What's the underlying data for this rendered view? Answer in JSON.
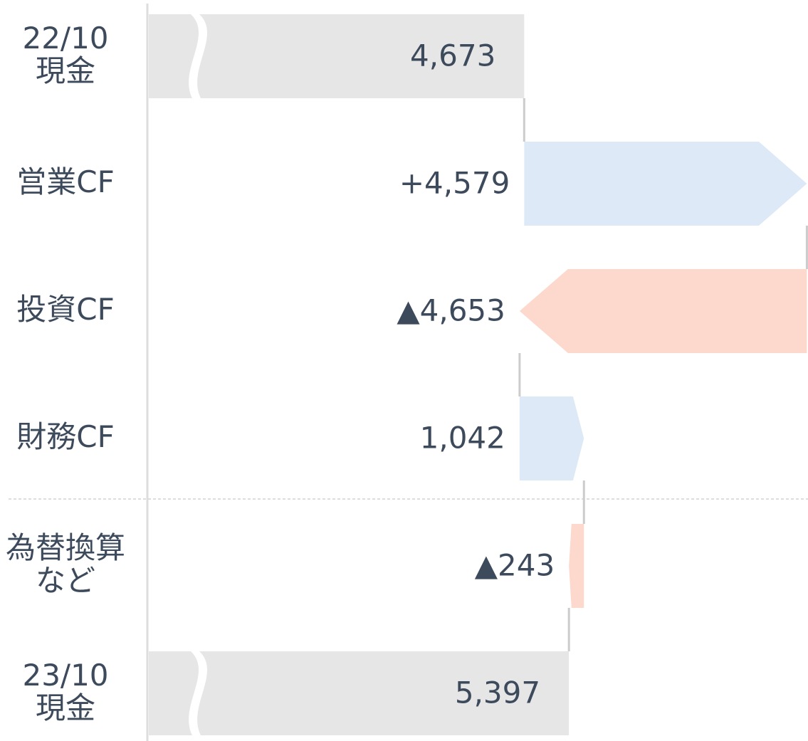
{
  "chart_data": {
    "type": "waterfall",
    "orientation": "horizontal",
    "axis_break": true,
    "categories": [
      [
        "22/10",
        "現金"
      ],
      [
        "営業CF"
      ],
      [
        "投資CF"
      ],
      [
        "財務CF"
      ],
      [
        "為替換算",
        "など"
      ],
      [
        "23/10",
        "現金"
      ]
    ],
    "values": [
      4673,
      4579,
      -4653,
      1042,
      -243,
      5397
    ],
    "value_labels": [
      "4,673",
      "+4,579",
      "▲4,653",
      "1,042",
      "▲243",
      "5,397"
    ],
    "kinds": [
      "total",
      "delta",
      "delta",
      "delta",
      "delta",
      "total"
    ],
    "colors": {
      "total": "#e6e6e6",
      "positive": "#dde9f6",
      "negative": "#fdd8cd"
    },
    "xlim": [
      -1430,
      9270
    ]
  }
}
